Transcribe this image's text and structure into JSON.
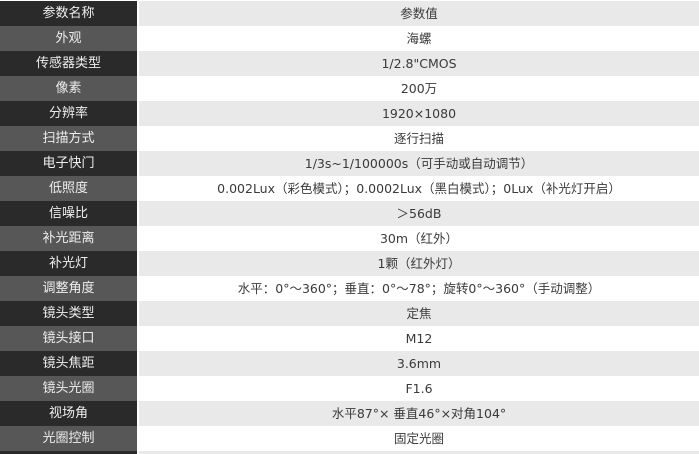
{
  "table": {
    "header": {
      "name": "参数名称",
      "value": "参数值"
    },
    "rows": [
      {
        "name": "外观",
        "value": "海螺"
      },
      {
        "name": "传感器类型",
        "value": "1/2.8\"CMOS"
      },
      {
        "name": "像素",
        "value": "200万"
      },
      {
        "name": "分辨率",
        "value": "1920×1080"
      },
      {
        "name": "扫描方式",
        "value": "逐行扫描"
      },
      {
        "name": "电子快门",
        "value": "1/3s~1/100000s（可手动或自动调节）"
      },
      {
        "name": "低照度",
        "value": "0.002Lux（彩色模式）；0.0002Lux（黑白模式）；0Lux（补光灯开启）"
      },
      {
        "name": "信噪比",
        "value": "＞56dB"
      },
      {
        "name": "补光距离",
        "value": "30m（红外）"
      },
      {
        "name": "补光灯",
        "value": "1颗（红外灯）"
      },
      {
        "name": "调整角度",
        "value": "水平：0°～360°；垂直：0°～78°；旋转0°～360°（手动调整）"
      },
      {
        "name": "镜头类型",
        "value": "定焦"
      },
      {
        "name": "镜头接口",
        "value": "M12"
      },
      {
        "name": "镜头焦距",
        "value": "3.6mm"
      },
      {
        "name": "镜头光圈",
        "value": "F1.6"
      },
      {
        "name": "视场角",
        "value": "水平87°× 垂直46°×对角104°"
      },
      {
        "name": "光圈控制",
        "value": "固定光圈"
      }
    ]
  }
}
